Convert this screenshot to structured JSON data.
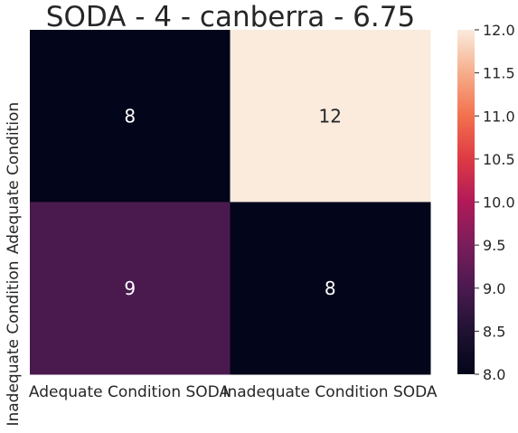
{
  "chart_data": {
    "type": "heatmap",
    "title": "SODA - 4 - canberra - 6.75",
    "rows": [
      "Adequate Condition",
      "Inadequate Condition"
    ],
    "columns": [
      "Adequate Condition SODA",
      "Inadequate Condition SODA"
    ],
    "values": [
      [
        8,
        12
      ],
      [
        9,
        8
      ]
    ],
    "cell_labels": [
      [
        "8",
        "12"
      ],
      [
        "9",
        "8"
      ]
    ],
    "colorbar": {
      "min": 8.0,
      "max": 12.0,
      "ticks": [
        "8.0",
        "8.5",
        "9.0",
        "9.5",
        "10.0",
        "10.5",
        "11.0",
        "11.5",
        "12.0"
      ],
      "colormap": "rocket"
    },
    "colors": {
      "low": "#03051a",
      "mid": "#611f53",
      "high": "#faebdd",
      "annotation_on_dark": "#ffffff",
      "annotation_on_light": "#262626"
    }
  }
}
